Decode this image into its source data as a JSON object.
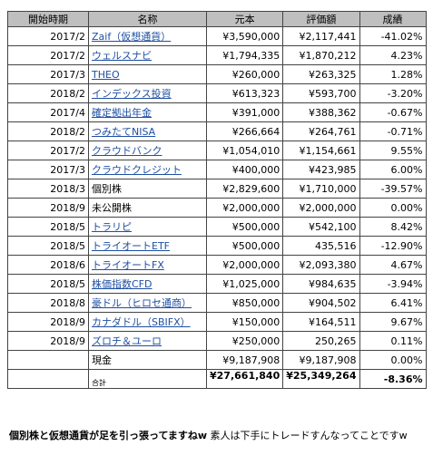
{
  "table": {
    "headers": [
      "開始時期",
      "名称",
      "元本",
      "評価額",
      "成績"
    ],
    "rows": [
      {
        "date": "2017/2",
        "name": "Zaif（仮想通貨）",
        "link": true,
        "cost": "¥3,590,000",
        "value": "¥2,117,441",
        "result": "-41.02%"
      },
      {
        "date": "2017/2",
        "name": "ウェルスナビ",
        "link": true,
        "cost": "¥1,794,335",
        "value": "¥1,870,212",
        "result": "4.23%"
      },
      {
        "date": "2017/3",
        "name": "THEO",
        "link": true,
        "cost": "¥260,000",
        "value": "¥263,325",
        "result": "1.28%"
      },
      {
        "date": "2018/2",
        "name": "インデックス投資",
        "link": true,
        "cost": "¥613,323",
        "value": "¥593,700",
        "result": "-3.20%"
      },
      {
        "date": "2017/4",
        "name": "確定拠出年金",
        "link": true,
        "cost": "¥391,000",
        "value": "¥388,362",
        "result": "-0.67%"
      },
      {
        "date": "2018/2",
        "name": "つみたてNISA",
        "link": true,
        "cost": "¥266,664",
        "value": "¥264,761",
        "result": "-0.71%"
      },
      {
        "date": "2017/2",
        "name": "クラウドバンク",
        "link": true,
        "cost": "¥1,054,010",
        "value": "¥1,154,661",
        "result": "9.55%"
      },
      {
        "date": "2017/3",
        "name": "クラウドクレジット",
        "link": true,
        "cost": "¥400,000",
        "value": "¥423,985",
        "result": "6.00%"
      },
      {
        "date": "2018/3",
        "name": "個別株",
        "link": false,
        "cost": "¥2,829,600",
        "value": "¥1,710,000",
        "result": "-39.57%"
      },
      {
        "date": "2018/9",
        "name": "未公開株",
        "link": false,
        "cost": "¥2,000,000",
        "value": "¥2,000,000",
        "result": "0.00%"
      },
      {
        "date": "2018/5",
        "name": "トラリピ",
        "link": true,
        "cost": "¥500,000",
        "value": "¥542,100",
        "result": "8.42%"
      },
      {
        "date": "2018/5",
        "name": "トライオートETF",
        "link": true,
        "cost": "¥500,000",
        "value": "435,516",
        "result": "-12.90%"
      },
      {
        "date": "2018/6",
        "name": "トライオートFX",
        "link": true,
        "cost": "¥2,000,000",
        "value": "¥2,093,380",
        "result": "4.67%"
      },
      {
        "date": "2018/5",
        "name": "株価指数CFD",
        "link": true,
        "cost": "¥1,025,000",
        "value": "¥984,635",
        "result": "-3.94%"
      },
      {
        "date": "2018/8",
        "name": "豪ドル（ヒロセ通商）",
        "link": true,
        "cost": "¥850,000",
        "value": "¥904,502",
        "result": "6.41%"
      },
      {
        "date": "2018/9",
        "name": "カナダドル（SBIFX）",
        "link": true,
        "cost": "¥150,000",
        "value": "¥164,511",
        "result": "9.67%"
      },
      {
        "date": "2018/9",
        "name": "ズロチ＆ユーロ",
        "link": true,
        "cost": "¥250,000",
        "value": "250,265",
        "result": "0.11%"
      },
      {
        "date": "",
        "name": "現金",
        "link": false,
        "cost": "¥9,187,908",
        "value": "¥9,187,908",
        "result": "0.00%"
      }
    ],
    "total": {
      "label": "合計",
      "cost": "¥27,661,840",
      "value": "¥25,349,264",
      "result": "-8.36%"
    }
  },
  "caption": {
    "bold": "個別株と仮想通貨が足を引っ張ってますねw",
    "rest": " 素人は下手にトレードすんなってことですw"
  }
}
